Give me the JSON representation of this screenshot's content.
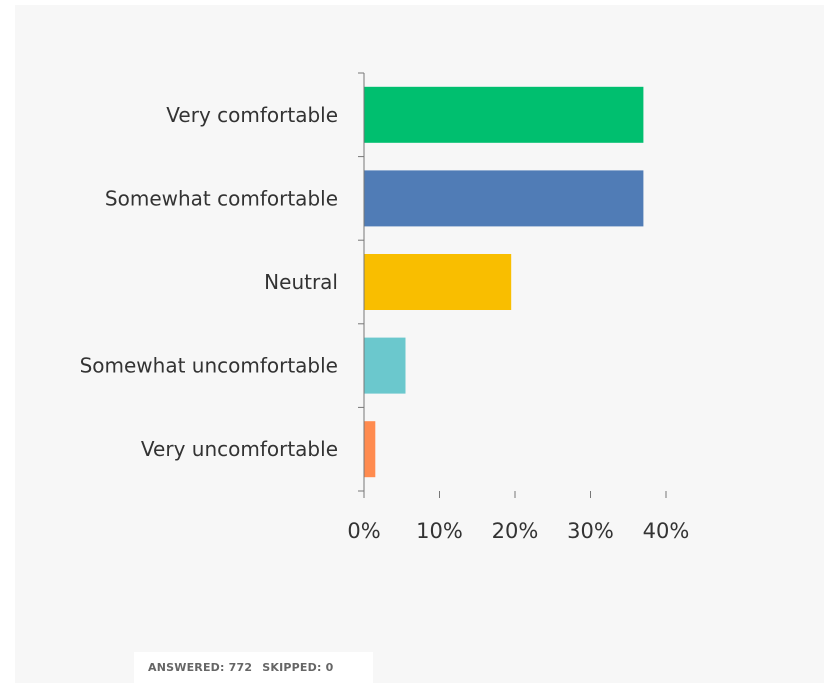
{
  "chart_data": {
    "type": "bar",
    "orientation": "horizontal",
    "categories": [
      "Very comfortable",
      "Somewhat comfortable",
      "Neutral",
      "Somewhat uncomfortable",
      "Very uncomfortable"
    ],
    "values": [
      37,
      37,
      19.5,
      5.5,
      1.5
    ],
    "unit": "%",
    "xlim": [
      0,
      40
    ],
    "xticks": [
      "0%",
      "10%",
      "20%",
      "30%",
      "40%"
    ],
    "colors": [
      "#00bf6f",
      "#507cb6",
      "#f9be00",
      "#6bc8cd",
      "#ff8b4f"
    ],
    "grid": false,
    "legend": "none"
  },
  "footer": {
    "answered_label": "ANSWERED:",
    "answered_value": "772",
    "skipped_label": "SKIPPED:",
    "skipped_value": "0"
  }
}
